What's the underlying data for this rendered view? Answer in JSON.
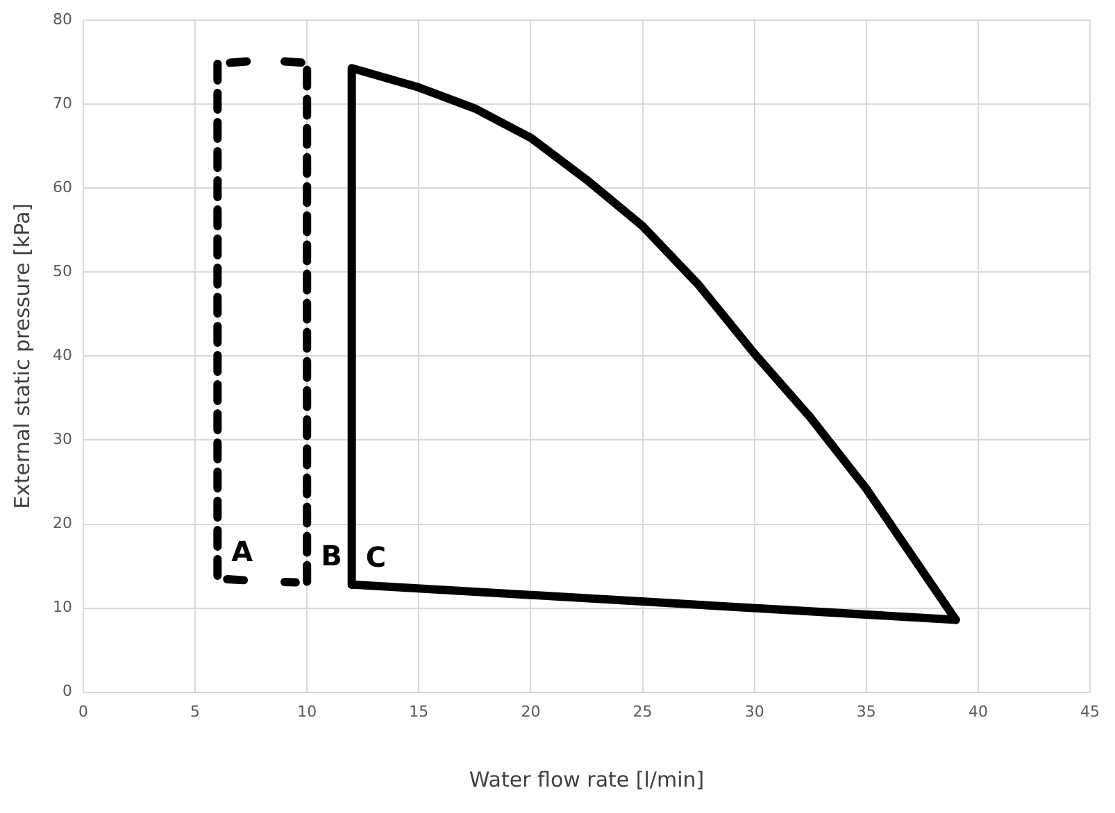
{
  "chart_data": {
    "type": "line",
    "xlabel": "Water flow rate [l/min]",
    "ylabel": "External static pressure [kPa]",
    "xlim": [
      0,
      45
    ],
    "xticks": [
      0,
      5,
      10,
      15,
      20,
      25,
      30,
      35,
      40,
      45
    ],
    "ylim": [
      0,
      80
    ],
    "yticks": [
      0,
      10,
      20,
      30,
      40,
      50,
      60,
      70,
      80
    ],
    "grid": true,
    "legend": false,
    "marker": "none",
    "series": [
      {
        "name": "A",
        "color": "#000000",
        "line_style": "dashed",
        "x": [
          7.3,
          6,
          6,
          7.3
        ],
        "values": [
          75.1,
          74.8,
          13.5,
          13.3
        ]
      },
      {
        "name": "B",
        "color": "#000000",
        "line_style": "dashed",
        "x": [
          9,
          10,
          10,
          9
        ],
        "values": [
          75.1,
          74.9,
          13,
          13.1
        ]
      },
      {
        "name": "C",
        "color": "#000000",
        "line_style": "solid",
        "x": [
          12,
          12,
          15,
          17.5,
          20,
          22.5,
          25,
          27.5,
          30,
          32.5,
          35,
          37,
          39
        ],
        "values": [
          12.8,
          74.3,
          72,
          69.5,
          66,
          61,
          55.5,
          48.5,
          40.3,
          32.7,
          24.2,
          16.4,
          8.6
        ]
      },
      {
        "color": "#000000",
        "line_style": "solid",
        "x": [
          12,
          39
        ],
        "values": [
          12.8,
          8.6
        ]
      }
    ]
  }
}
